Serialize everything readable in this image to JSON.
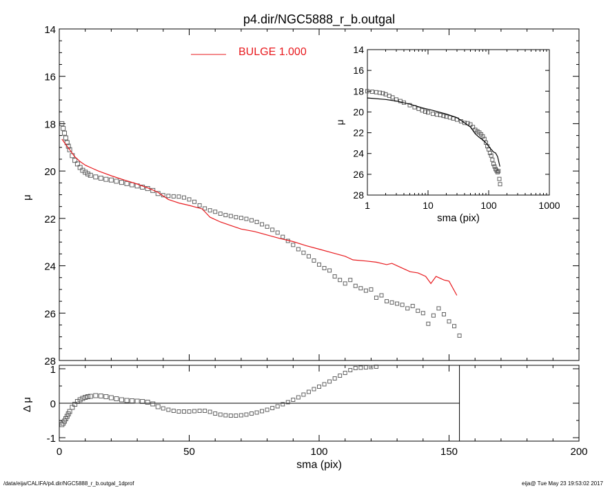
{
  "chart_data": [
    {
      "id": "main",
      "type": "scatter",
      "title": "p4.dir/NGC5888_r_b.outgal",
      "xlabel": "",
      "ylabel": "μ",
      "xlim": [
        0,
        200
      ],
      "ylim": [
        28,
        14
      ],
      "yticks": [
        14,
        16,
        18,
        20,
        22,
        24,
        26,
        28
      ],
      "grid": false,
      "legend": {
        "position": "top",
        "entries": [
          {
            "name": "BULGE  1.000",
            "color": "#e8191d"
          }
        ]
      },
      "series": [
        {
          "name": "data",
          "kind": "points",
          "x": [
            1.0,
            1.5,
            2.0,
            2.5,
            3.0,
            3.5,
            4.0,
            5.0,
            6.0,
            7.0,
            8.0,
            9.0,
            10.0,
            11.0,
            12.0,
            14.0,
            16.0,
            18.0,
            20.0,
            22.0,
            24.0,
            26.0,
            28.0,
            30.0,
            32.0,
            34.0,
            36.0,
            38.0,
            40.0,
            42.0,
            44.0,
            46.0,
            48.0,
            50.0,
            52.0,
            54.0,
            56.0,
            58.0,
            60.0,
            62.0,
            64.0,
            66.0,
            68.0,
            70.0,
            72.0,
            74.0,
            76.0,
            78.0,
            80.0,
            82.0,
            84.0,
            86.0,
            88.0,
            90.0,
            92.0,
            94.0,
            96.0,
            98.0,
            100.0,
            102.0,
            104.0,
            106.0,
            108.0,
            110.0,
            112.0,
            114.0,
            116.0,
            118.0,
            120.0,
            122.0,
            124.0,
            126.0,
            128.0,
            130.0,
            132.0,
            134.0,
            136.0,
            138.0,
            140.0,
            142.0,
            144.0,
            146.0,
            148.0,
            150.0,
            152.0,
            154.0
          ],
          "y": [
            18.0,
            18.2,
            18.4,
            18.6,
            18.8,
            18.95,
            19.1,
            19.35,
            19.55,
            19.7,
            19.85,
            19.97,
            20.05,
            20.12,
            20.18,
            20.25,
            20.3,
            20.35,
            20.38,
            20.43,
            20.48,
            20.53,
            20.58,
            20.63,
            20.68,
            20.74,
            20.82,
            20.95,
            21.02,
            21.05,
            21.07,
            21.08,
            21.12,
            21.2,
            21.3,
            21.45,
            21.58,
            21.66,
            21.72,
            21.8,
            21.86,
            21.9,
            21.95,
            21.98,
            22.02,
            22.08,
            22.15,
            22.25,
            22.35,
            22.48,
            22.6,
            22.78,
            22.95,
            23.12,
            23.3,
            23.45,
            23.6,
            23.78,
            23.95,
            24.1,
            24.2,
            24.45,
            24.6,
            24.75,
            24.6,
            24.85,
            24.95,
            25.05,
            25.0,
            25.35,
            25.25,
            25.5,
            25.55,
            25.6,
            25.65,
            25.8,
            25.7,
            25.9,
            26.0,
            26.45,
            26.1,
            25.8,
            26.05,
            26.35,
            26.55,
            26.95
          ]
        },
        {
          "name": "model",
          "kind": "line",
          "color": "#e8191d",
          "x": [
            1.0,
            2.0,
            3.0,
            4.0,
            5.0,
            6.0,
            8.0,
            10.0,
            12.0,
            15.0,
            20.0,
            25.0,
            30.0,
            35.0,
            38.0,
            42.0,
            46.0,
            50.0,
            55.0,
            58.0,
            62.0,
            66.0,
            70.0,
            75.0,
            80.0,
            85.0,
            90.0,
            95.0,
            100.0,
            105.0,
            110.0,
            113.0,
            118.0,
            122.0,
            126.0,
            128.0,
            130.0,
            135.0,
            138.0,
            141.0,
            143.0,
            145.0,
            148.0,
            150.0,
            153.0
          ],
          "y": [
            18.65,
            18.8,
            18.95,
            19.1,
            19.25,
            19.4,
            19.6,
            19.75,
            19.85,
            20.0,
            20.2,
            20.38,
            20.55,
            20.75,
            20.9,
            21.2,
            21.35,
            21.45,
            21.6,
            21.95,
            22.15,
            22.3,
            22.45,
            22.55,
            22.7,
            22.85,
            22.98,
            23.15,
            23.3,
            23.45,
            23.6,
            23.75,
            23.8,
            23.85,
            23.95,
            23.9,
            24.0,
            24.25,
            24.3,
            24.45,
            24.75,
            24.45,
            24.6,
            24.65,
            25.25
          ]
        }
      ]
    },
    {
      "id": "inset",
      "type": "scatter",
      "xlabel": "sma (pix)",
      "ylabel": "μ",
      "xscale": "log",
      "xlim": [
        1,
        1000
      ],
      "ylim": [
        28,
        14
      ],
      "xticks": [
        1,
        10,
        100,
        1000
      ],
      "yticks": [
        14,
        16,
        18,
        20,
        22,
        24,
        26,
        28
      ],
      "series": [
        {
          "name": "data",
          "kind": "points",
          "x": [
            1.0,
            1.2,
            1.4,
            1.6,
            1.8,
            2.0,
            2.3,
            2.6,
            3.0,
            3.5,
            4.0,
            5.0,
            6.0,
            7.0,
            8.0,
            9.0,
            10.0,
            12.0,
            14.0,
            16.0,
            18.0,
            20.0,
            23.0,
            26.0,
            30.0,
            35.0,
            40.0,
            45.0,
            50.0,
            55.0,
            60.0,
            65.0,
            70.0,
            75.0,
            80.0,
            85.0,
            90.0,
            95.0,
            100.0,
            105.0,
            110.0,
            115.0,
            120.0,
            125.0,
            130.0,
            135.0,
            140.0,
            145.0,
            150.0,
            154.0
          ],
          "y": [
            18.0,
            18.05,
            18.1,
            18.15,
            18.2,
            18.3,
            18.45,
            18.6,
            18.8,
            18.95,
            19.1,
            19.35,
            19.55,
            19.7,
            19.85,
            19.97,
            20.05,
            20.18,
            20.25,
            20.3,
            20.38,
            20.45,
            20.53,
            20.63,
            20.74,
            20.9,
            21.05,
            21.08,
            21.2,
            21.45,
            21.72,
            21.86,
            21.98,
            22.15,
            22.35,
            22.6,
            22.95,
            23.3,
            23.6,
            23.95,
            24.2,
            24.6,
            25.0,
            25.25,
            25.5,
            25.65,
            25.8,
            25.7,
            26.45,
            26.95
          ]
        },
        {
          "name": "model",
          "kind": "line",
          "color": "#000000",
          "x": [
            1.0,
            2.0,
            3.0,
            5.0,
            8.0,
            12.0,
            20.0,
            30.0,
            40.0,
            50.0,
            60.0,
            70.0,
            80.0,
            90.0,
            100.0,
            110.0,
            120.0,
            130.0,
            140.0,
            153.0
          ],
          "y": [
            18.65,
            18.8,
            18.95,
            19.25,
            19.6,
            19.85,
            20.2,
            20.55,
            21.05,
            21.45,
            22.1,
            22.45,
            22.7,
            22.98,
            23.3,
            23.6,
            23.85,
            23.95,
            24.3,
            25.25
          ]
        }
      ]
    },
    {
      "id": "residual",
      "type": "scatter",
      "xlabel": "sma (pix)",
      "ylabel": "Δ μ",
      "xlim": [
        0,
        200
      ],
      "ylim": [
        -1.1,
        1.1
      ],
      "xticks": [
        0,
        50,
        100,
        150,
        200
      ],
      "yticks": [
        -1,
        0,
        1
      ],
      "series": [
        {
          "name": "residual",
          "kind": "points",
          "x": [
            1.0,
            1.5,
            2.0,
            2.5,
            3.0,
            3.5,
            4.0,
            5.0,
            6.0,
            7.0,
            8.0,
            9.0,
            10.0,
            11.0,
            12.0,
            14.0,
            16.0,
            18.0,
            20.0,
            22.0,
            24.0,
            26.0,
            28.0,
            30.0,
            32.0,
            34.0,
            36.0,
            38.0,
            40.0,
            42.0,
            44.0,
            46.0,
            48.0,
            50.0,
            52.0,
            54.0,
            56.0,
            58.0,
            60.0,
            62.0,
            64.0,
            66.0,
            68.0,
            70.0,
            72.0,
            74.0,
            76.0,
            78.0,
            80.0,
            82.0,
            84.0,
            86.0,
            88.0,
            90.0,
            92.0,
            94.0,
            96.0,
            98.0,
            100.0,
            102.0,
            104.0,
            106.0,
            108.0,
            110.0,
            112.0,
            114.0,
            116.0,
            118.0,
            120.0,
            122.0
          ],
          "y": [
            -0.62,
            -0.58,
            -0.52,
            -0.45,
            -0.38,
            -0.31,
            -0.24,
            -0.12,
            -0.03,
            0.05,
            0.1,
            0.14,
            0.17,
            0.19,
            0.2,
            0.22,
            0.21,
            0.19,
            0.16,
            0.13,
            0.1,
            0.08,
            0.07,
            0.06,
            0.05,
            0.03,
            -0.02,
            -0.1,
            -0.15,
            -0.19,
            -0.22,
            -0.24,
            -0.24,
            -0.24,
            -0.23,
            -0.22,
            -0.22,
            -0.25,
            -0.3,
            -0.33,
            -0.35,
            -0.36,
            -0.36,
            -0.35,
            -0.33,
            -0.3,
            -0.27,
            -0.23,
            -0.19,
            -0.14,
            -0.09,
            -0.03,
            0.03,
            0.1,
            0.17,
            0.25,
            0.33,
            0.41,
            0.48,
            0.55,
            0.63,
            0.72,
            0.8,
            0.88,
            0.96,
            1.02,
            1.03,
            1.04,
            1.05,
            1.06
          ]
        }
      ],
      "reference_lines": {
        "y0": 0,
        "x_vertical": 154
      }
    }
  ],
  "footer": {
    "left": "/data/eija/CALIFA/p4.dir/NGC5888_r_b.outgal_1dprof",
    "right": "eija@  Tue May 23 19:53:02 2017"
  }
}
